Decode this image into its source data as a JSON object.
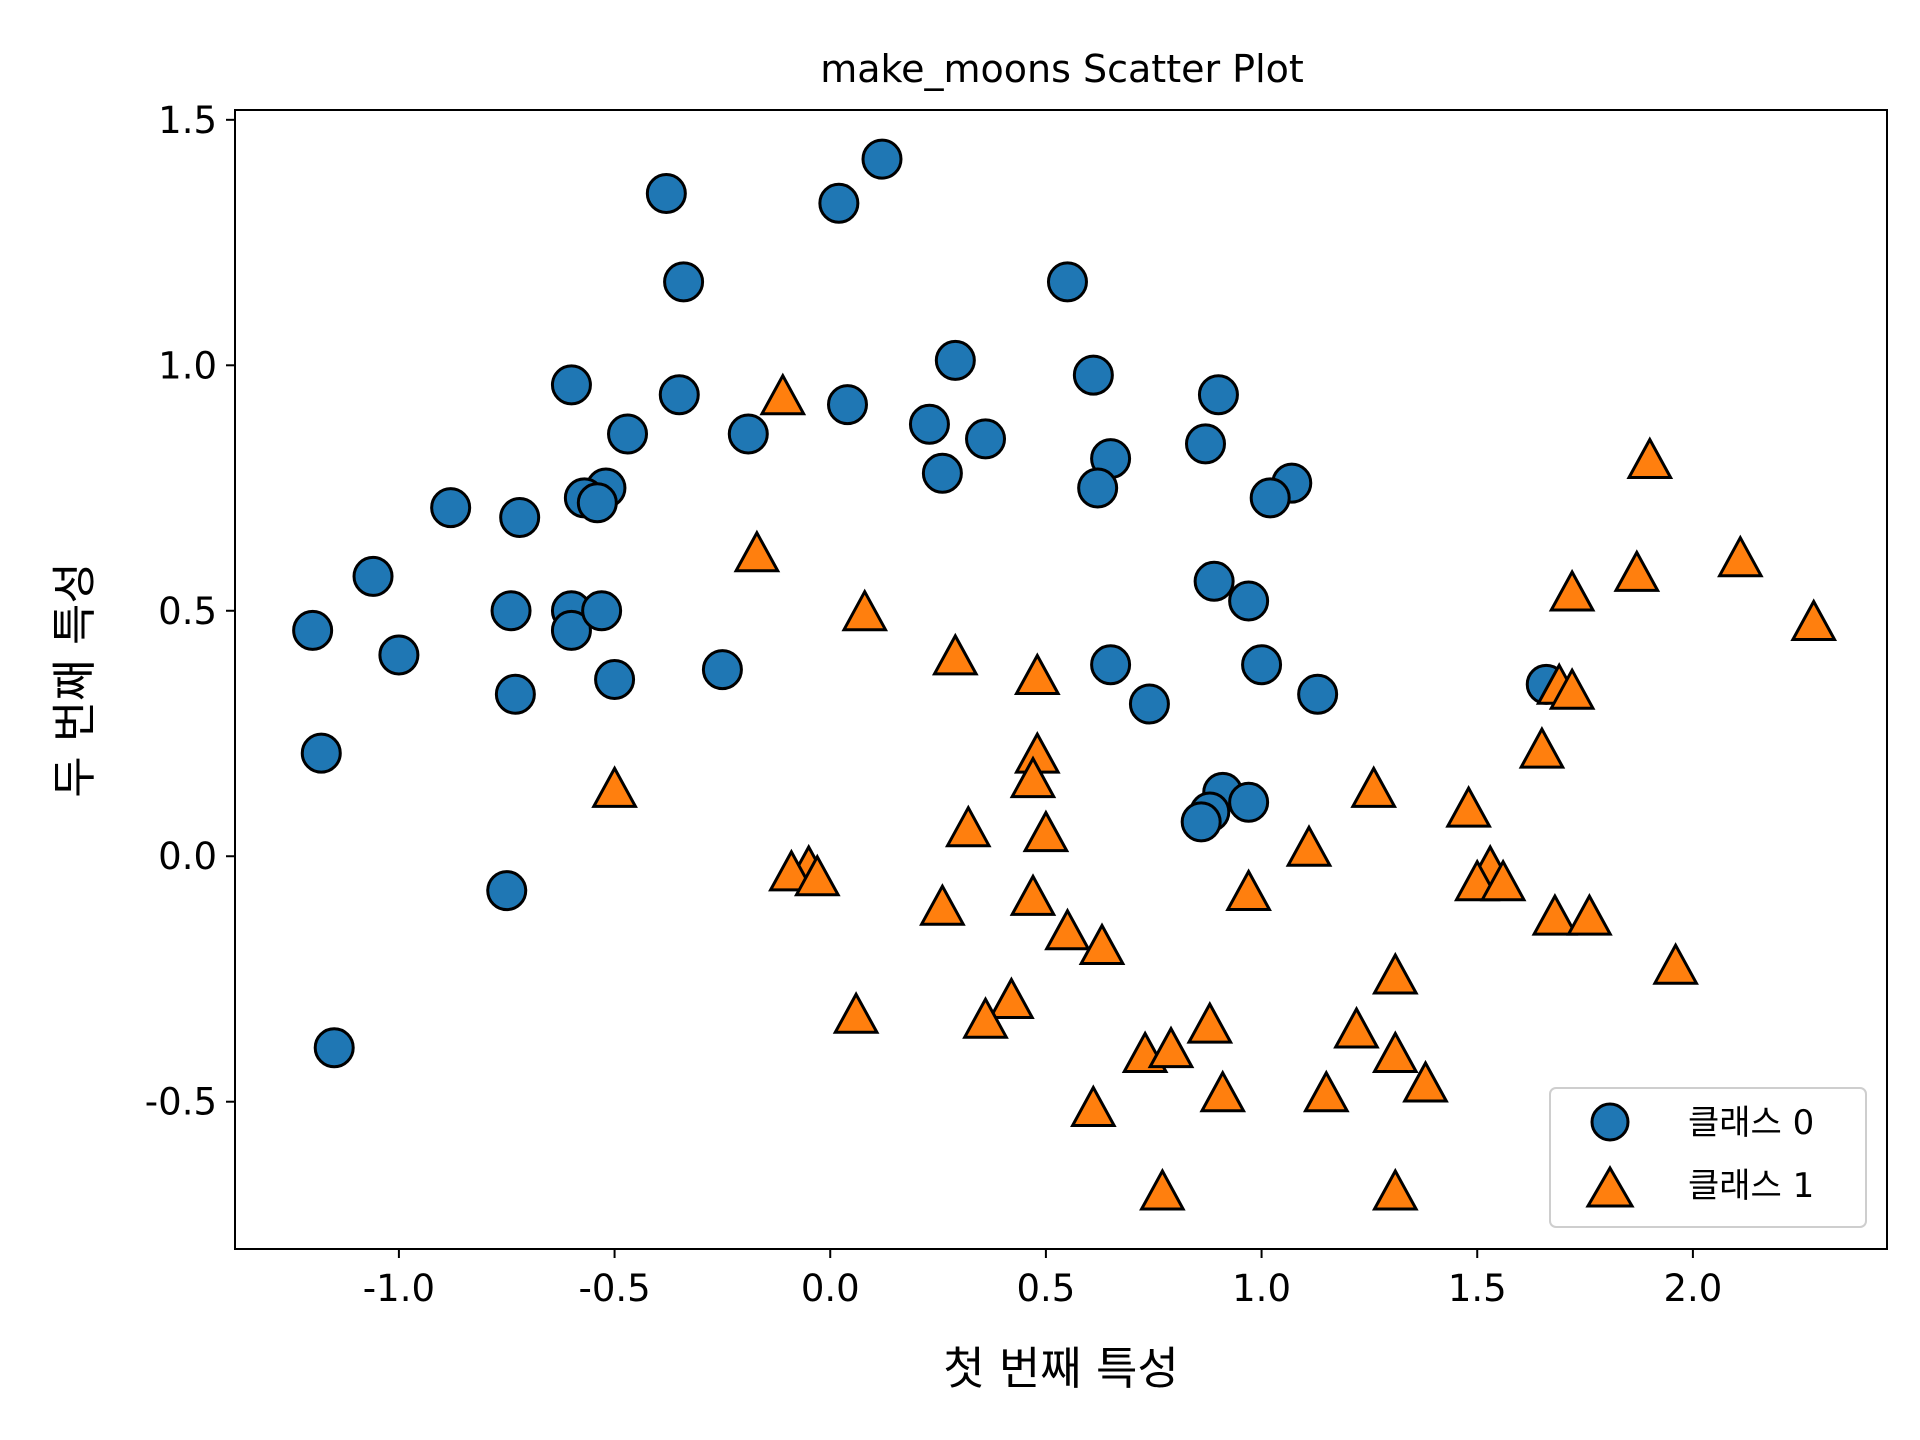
{
  "chart_data": {
    "type": "scatter",
    "title": "make_moons Scatter Plot",
    "xlabel": "첫 번째 특성",
    "ylabel": "두 번째 특성",
    "xlim": [
      -1.38,
      2.45
    ],
    "ylim": [
      -0.8,
      1.52
    ],
    "xticks": [
      -1.0,
      -0.5,
      0.0,
      0.5,
      1.0,
      1.5,
      2.0
    ],
    "yticks": [
      -0.5,
      0.0,
      0.5,
      1.0,
      1.5
    ],
    "xtick_labels": [
      "-1.0",
      "-0.5",
      "0.0",
      "0.5",
      "1.0",
      "1.5",
      "2.0"
    ],
    "ytick_labels": [
      "-0.5",
      "0.0",
      "0.5",
      "1.0",
      "1.5"
    ],
    "legend_position": "bottom-right",
    "grid": false,
    "series": [
      {
        "name": "클래스 0",
        "marker": "circle",
        "color": "#1f77b4",
        "points": [
          [
            0.12,
            1.42
          ],
          [
            0.02,
            1.33
          ],
          [
            -0.38,
            1.35
          ],
          [
            -0.34,
            1.17
          ],
          [
            0.55,
            1.17
          ],
          [
            0.29,
            1.01
          ],
          [
            0.61,
            0.98
          ],
          [
            -0.6,
            0.96
          ],
          [
            -0.35,
            0.94
          ],
          [
            0.04,
            0.92
          ],
          [
            0.9,
            0.94
          ],
          [
            0.23,
            0.88
          ],
          [
            -0.47,
            0.86
          ],
          [
            -0.19,
            0.86
          ],
          [
            0.36,
            0.85
          ],
          [
            0.87,
            0.84
          ],
          [
            0.65,
            0.81
          ],
          [
            0.26,
            0.78
          ],
          [
            0.62,
            0.75
          ],
          [
            1.07,
            0.76
          ],
          [
            1.02,
            0.73
          ],
          [
            -0.52,
            0.75
          ],
          [
            -0.57,
            0.73
          ],
          [
            -0.54,
            0.72
          ],
          [
            -0.88,
            0.71
          ],
          [
            -0.72,
            0.69
          ],
          [
            -1.06,
            0.57
          ],
          [
            -1.2,
            0.46
          ],
          [
            -1.0,
            0.41
          ],
          [
            -0.74,
            0.5
          ],
          [
            -0.6,
            0.5
          ],
          [
            -0.6,
            0.46
          ],
          [
            -0.53,
            0.5
          ],
          [
            -0.5,
            0.36
          ],
          [
            -0.25,
            0.38
          ],
          [
            -0.73,
            0.33
          ],
          [
            -1.18,
            0.21
          ],
          [
            0.89,
            0.56
          ],
          [
            0.97,
            0.52
          ],
          [
            0.65,
            0.39
          ],
          [
            1.0,
            0.39
          ],
          [
            1.13,
            0.33
          ],
          [
            0.74,
            0.31
          ],
          [
            1.66,
            0.35
          ],
          [
            0.91,
            0.13
          ],
          [
            0.97,
            0.11
          ],
          [
            0.88,
            0.09
          ],
          [
            0.86,
            0.07
          ],
          [
            -0.75,
            -0.07
          ],
          [
            -1.15,
            -0.39
          ]
        ]
      },
      {
        "name": "클래스 1",
        "marker": "triangle",
        "color": "#ff7f0e",
        "points": [
          [
            -0.11,
            0.93
          ],
          [
            1.9,
            0.8
          ],
          [
            -0.17,
            0.61
          ],
          [
            2.11,
            0.6
          ],
          [
            1.87,
            0.57
          ],
          [
            1.72,
            0.53
          ],
          [
            2.28,
            0.47
          ],
          [
            0.08,
            0.49
          ],
          [
            0.29,
            0.4
          ],
          [
            0.48,
            0.36
          ],
          [
            1.69,
            0.34
          ],
          [
            1.72,
            0.33
          ],
          [
            0.48,
            0.2
          ],
          [
            1.65,
            0.21
          ],
          [
            0.47,
            0.15
          ],
          [
            1.26,
            0.13
          ],
          [
            -0.5,
            0.13
          ],
          [
            1.48,
            0.09
          ],
          [
            0.32,
            0.05
          ],
          [
            0.5,
            0.04
          ],
          [
            1.11,
            0.01
          ],
          [
            -0.05,
            -0.03
          ],
          [
            -0.09,
            -0.04
          ],
          [
            -0.03,
            -0.05
          ],
          [
            1.53,
            -0.03
          ],
          [
            1.5,
            -0.06
          ],
          [
            1.56,
            -0.06
          ],
          [
            0.97,
            -0.08
          ],
          [
            0.47,
            -0.09
          ],
          [
            0.26,
            -0.11
          ],
          [
            1.68,
            -0.13
          ],
          [
            1.76,
            -0.13
          ],
          [
            0.55,
            -0.16
          ],
          [
            0.63,
            -0.19
          ],
          [
            1.96,
            -0.23
          ],
          [
            1.31,
            -0.25
          ],
          [
            0.42,
            -0.3
          ],
          [
            0.06,
            -0.33
          ],
          [
            0.36,
            -0.34
          ],
          [
            0.88,
            -0.35
          ],
          [
            1.22,
            -0.36
          ],
          [
            1.31,
            -0.41
          ],
          [
            0.73,
            -0.41
          ],
          [
            0.79,
            -0.4
          ],
          [
            1.38,
            -0.47
          ],
          [
            0.91,
            -0.49
          ],
          [
            1.15,
            -0.49
          ],
          [
            0.61,
            -0.52
          ],
          [
            0.77,
            -0.69
          ],
          [
            1.31,
            -0.69
          ]
        ]
      }
    ]
  }
}
